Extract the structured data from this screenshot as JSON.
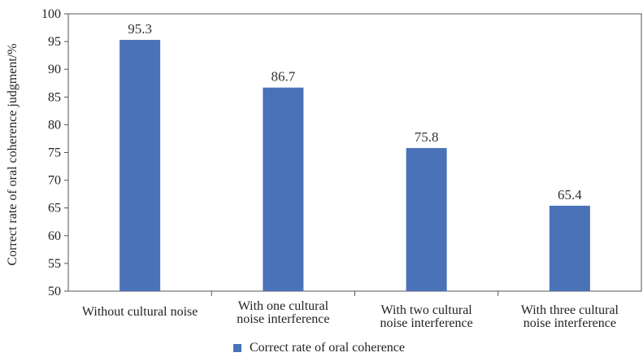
{
  "chart_data": {
    "type": "bar",
    "categories": [
      [
        "Without cultural noise"
      ],
      [
        "With one cultural",
        "noise interference"
      ],
      [
        "With two cultural",
        "noise interference"
      ],
      [
        "With three cultural",
        "noise interference"
      ]
    ],
    "series": [
      {
        "name": "Correct rate of oral coherence",
        "values": [
          95.3,
          86.7,
          75.8,
          65.4
        ],
        "color": "#4a72b8"
      }
    ],
    "ylabel": "Correct rate of oral coherence judgment/%",
    "xlabel": "",
    "ylim": [
      50,
      100
    ],
    "yticks": [
      50,
      55,
      60,
      65,
      70,
      75,
      80,
      85,
      90,
      95,
      100
    ],
    "grid": false,
    "legend_position": "bottom"
  }
}
